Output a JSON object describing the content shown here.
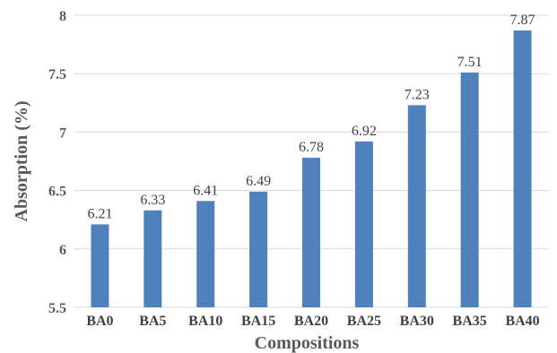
{
  "chart_data": {
    "type": "bar",
    "title": "",
    "xlabel": "Compositions",
    "ylabel": "Absorption (%)",
    "ylim": [
      5.5,
      8
    ],
    "yticks": [
      "5.5",
      "6",
      "6.5",
      "7",
      "7.5",
      "8"
    ],
    "grid": true,
    "legend": "none",
    "categories": [
      "BA0",
      "BA5",
      "BA10",
      "BA15",
      "BA20",
      "BA25",
      "BA30",
      "BA35",
      "BA40"
    ],
    "values": [
      6.21,
      6.33,
      6.41,
      6.49,
      6.78,
      6.92,
      7.23,
      7.51,
      7.87
    ],
    "data_labels": [
      "6.21",
      "6.33",
      "6.41",
      "6.49",
      "6.78",
      "6.92",
      "7.23",
      "7.51",
      "7.87"
    ],
    "bar_color": "#4f81bd"
  }
}
